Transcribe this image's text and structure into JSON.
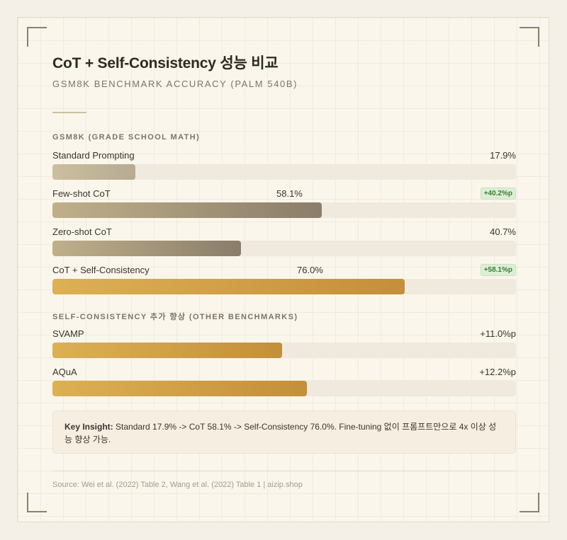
{
  "header": {
    "title": "CoT + Self-Consistency 성능 비교",
    "subtitle": "GSM8K BENCHMARK ACCURACY (PALM 540B)"
  },
  "sections": {
    "gsm8k_label": "GSM8K (GRADE SCHOOL MATH)",
    "other_label": "SELF-CONSISTENCY 추가 향상 (OTHER BENCHMARKS)"
  },
  "chart_data": [
    {
      "type": "bar",
      "orientation": "horizontal",
      "title": "GSM8K (GRADE SCHOOL MATH)",
      "xlim": [
        0,
        100
      ],
      "categories": [
        "Standard Prompting",
        "Few-shot CoT",
        "Zero-shot CoT",
        "CoT + Self-Consistency"
      ],
      "values": [
        17.9,
        58.1,
        40.7,
        76.0
      ],
      "value_labels": [
        "17.9%",
        "58.1%",
        "40.7%",
        "76.0%"
      ],
      "badges": [
        "",
        "+40.2%p",
        "",
        "+58.1%p"
      ]
    },
    {
      "type": "bar",
      "orientation": "horizontal",
      "title": "SELF-CONSISTENCY 추가 향상 (OTHER BENCHMARKS)",
      "categories": [
        "SVAMP",
        "AQuA"
      ],
      "values": [
        11.0,
        12.2
      ],
      "value_labels": [
        "+11.0%p",
        "+12.2%p"
      ],
      "xlim": [
        0,
        22.2
      ]
    }
  ],
  "insight": {
    "heading": "Key Insight:",
    "text": "Standard 17.9% -> CoT 58.1% -> Self-Consistency 76.0%. Fine-tuning 없이 프롬프트만으로 4x 이상 성능 향상 가능."
  },
  "footer": {
    "source": "Source: Wei et al. (2022) Table 2, Wang et al. (2022) Table 1 | aizip.shop"
  },
  "colors": {
    "accent_gold": "#d4a24a",
    "badge_green": "#3e7a38",
    "track": "#efe9de"
  }
}
